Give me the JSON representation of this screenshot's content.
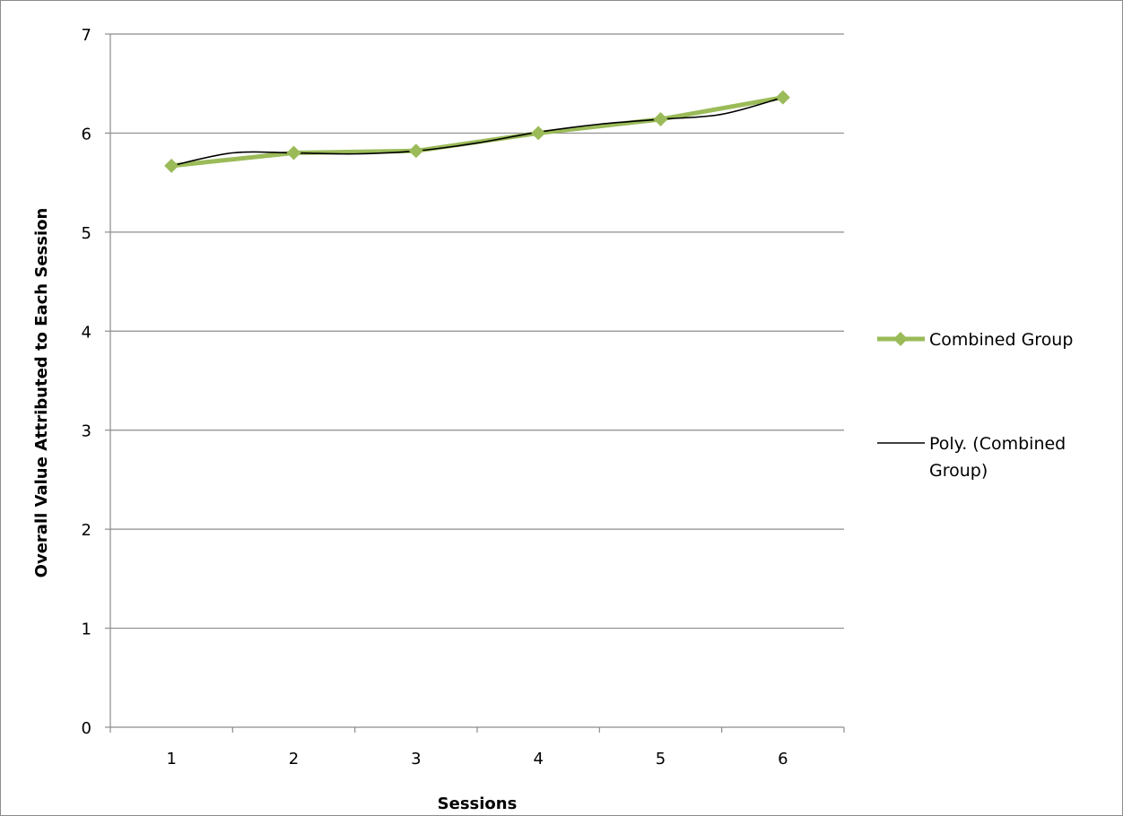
{
  "chart_data": {
    "type": "line",
    "title": "",
    "xlabel": "Sessions",
    "ylabel": "Overall Value Attributed to Each Session",
    "categories": [
      "1",
      "2",
      "3",
      "4",
      "5",
      "6"
    ],
    "ylim": [
      0,
      7
    ],
    "yticks": [
      "0",
      "1",
      "2",
      "3",
      "4",
      "5",
      "6",
      "7"
    ],
    "grid": true,
    "legend_position": "right",
    "series": [
      {
        "name": "Combined Group",
        "values": [
          5.67,
          5.8,
          5.82,
          6.0,
          6.14,
          6.36
        ],
        "color": "#9bbb59",
        "marker": "diamond"
      }
    ],
    "trendline": {
      "name_line1": "Poly. (Combined",
      "name_line2": "Group)",
      "type": "polynomial",
      "color": "#000000",
      "points": [
        [
          1,
          5.67
        ],
        [
          1.5,
          5.8
        ],
        [
          2,
          5.8
        ],
        [
          2.5,
          5.79
        ],
        [
          3,
          5.82
        ],
        [
          3.5,
          5.9
        ],
        [
          4,
          6.01
        ],
        [
          4.5,
          6.09
        ],
        [
          5,
          6.14
        ],
        [
          5.5,
          6.19
        ],
        [
          6,
          6.36
        ]
      ]
    }
  }
}
